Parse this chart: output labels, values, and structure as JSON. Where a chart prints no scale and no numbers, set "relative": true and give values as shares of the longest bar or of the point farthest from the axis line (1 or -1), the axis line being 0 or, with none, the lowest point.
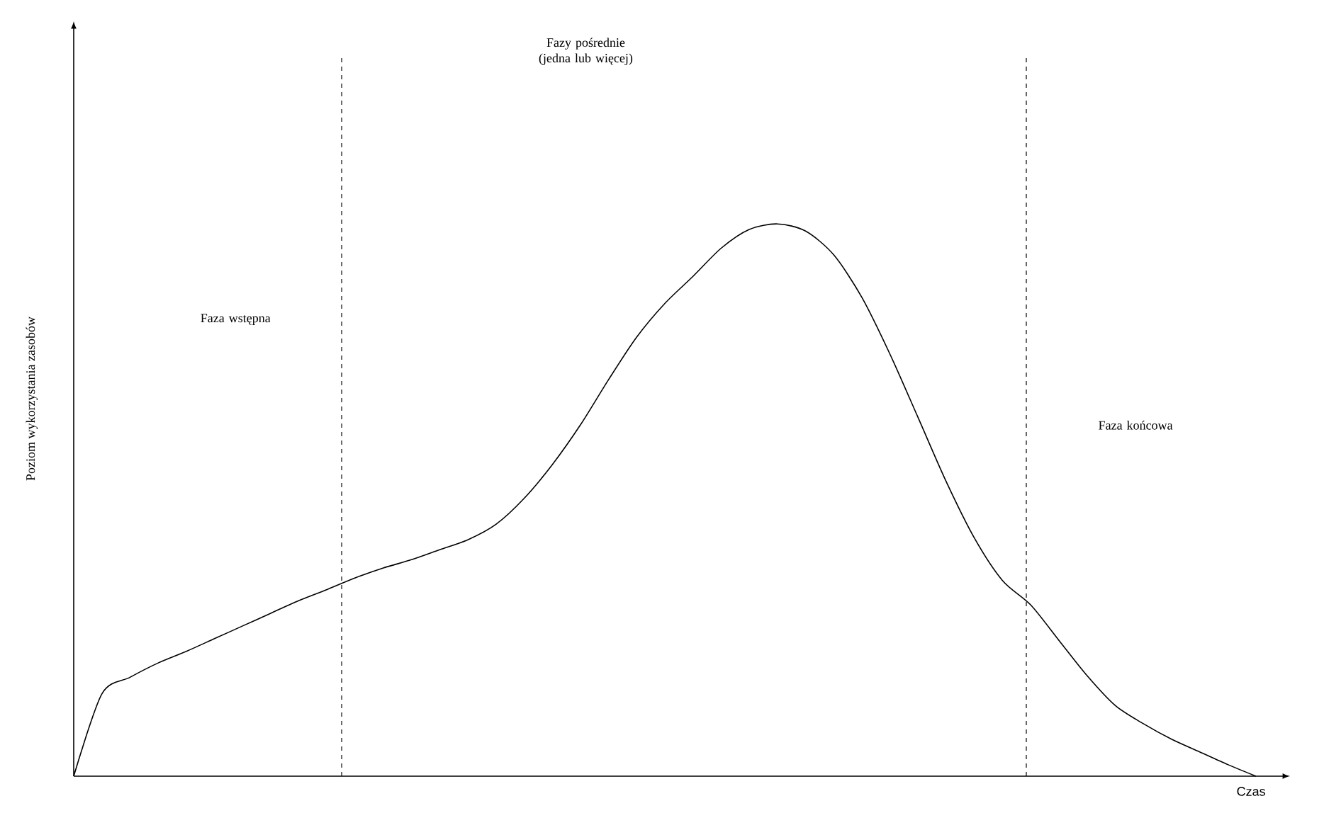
{
  "chart_data": {
    "type": "line",
    "relative": true,
    "xlabel": "Czas",
    "ylabel": "Poziom wykorzystania zasobów",
    "categories": [
      null,
      null,
      null,
      null,
      null,
      null,
      null,
      null,
      null,
      null,
      null,
      null,
      null,
      null,
      null,
      null,
      null,
      null,
      null,
      null,
      null,
      null,
      null,
      null,
      null,
      null,
      null,
      null,
      null,
      null,
      null,
      null,
      null,
      null,
      null,
      null,
      null,
      null,
      null,
      null,
      null,
      null,
      null
    ],
    "series": [
      {
        "color": "#000000",
        "values": [
          0,
          0.149,
          0.179,
          0.205,
          0.226,
          0.249,
          0.272,
          0.295,
          0.318,
          0.338,
          0.359,
          0.377,
          0.392,
          0.41,
          0.428,
          0.456,
          0.503,
          0.564,
          0.636,
          0.718,
          0.795,
          0.856,
          0.905,
          0.956,
          0.99,
          1.0,
          0.987,
          0.944,
          0.867,
          0.764,
          0.649,
          0.533,
          0.431,
          0.354,
          0.31,
          0.246,
          0.182,
          0.128,
          0.095,
          0.067,
          0.044,
          0.021,
          0
        ]
      }
    ],
    "annotations": [
      "Faza wstępna",
      "Fazy pośrednie (jedna lub więcej)",
      "Faza końcowa"
    ],
    "marker": "none",
    "line_style": "solid"
  }
}
